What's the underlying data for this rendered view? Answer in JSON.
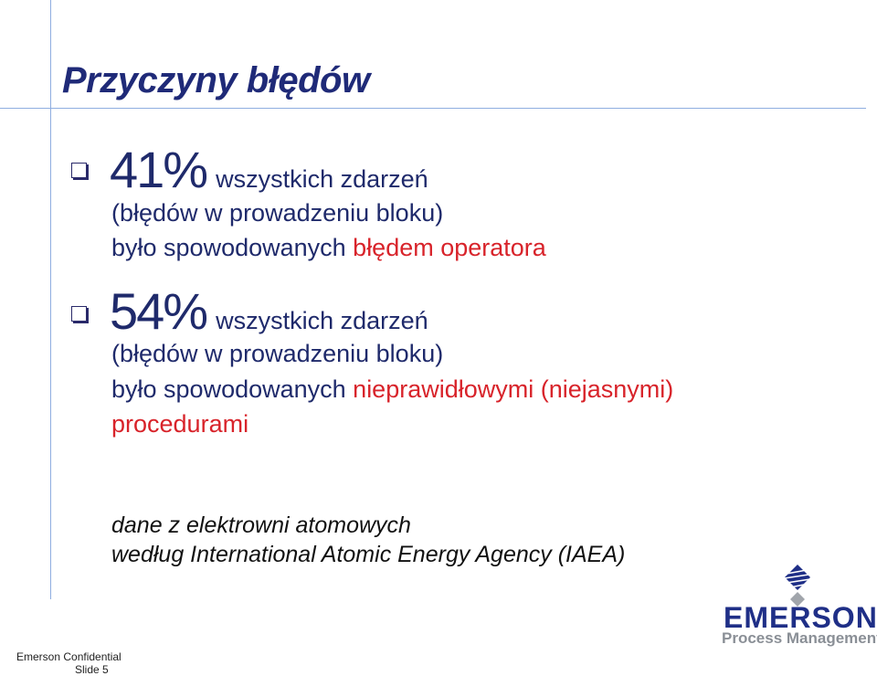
{
  "slide": {
    "title": "Przyczyny błędów",
    "bullets": [
      {
        "percent": "41%",
        "after_percent": "wszystkich zdarzeń",
        "line2": "(błędów w prowadzeniu bloku)",
        "line3_plain": "było spowodowanych ",
        "line3_red": "błędem operatora"
      },
      {
        "percent": "54%",
        "after_percent": "wszystkich zdarzeń",
        "line2": "(błędów w prowadzeniu bloku)",
        "line3_plain": "było spowodowanych ",
        "line3_red": "nieprawidłowymi (niejasnymi)",
        "line4_red": "procedurami"
      }
    ],
    "note_line1": "dane z elektrowni atomowych",
    "note_line2": "według International Atomic Energy Agency (IAEA)",
    "footer_confidential": "Emerson Confidential",
    "footer_slide": "Slide 5",
    "logo_word": "EMERSON.",
    "logo_sub": "Process Management"
  },
  "colors": {
    "title": "#1f2a78",
    "body_text": "#1f2a6b",
    "highlight": "#d8232a",
    "rule_lines": "#8faee0",
    "logo_blue": "#1f2f87",
    "logo_gray": "#8a8f96"
  },
  "icons": {
    "bullet": "checkbox-bullet-icon",
    "logo_mark": "emerson-logo-icon"
  }
}
